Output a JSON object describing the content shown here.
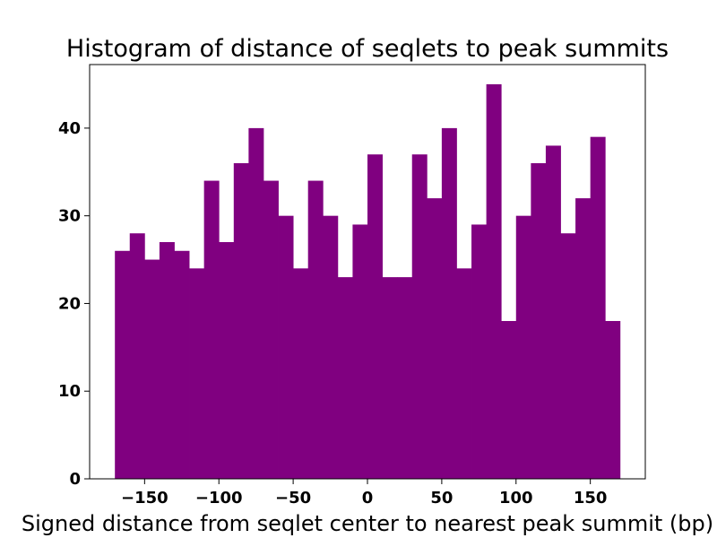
{
  "chart_data": {
    "type": "bar",
    "title": "Histogram of distance of seqlets to peak summits",
    "xlabel": "Signed distance from seqlet center to nearest peak summit (bp)",
    "ylabel": "",
    "bin_edges": [
      -170,
      -160,
      -150,
      -140,
      -130,
      -120,
      -110,
      -100,
      -90,
      -80,
      -70,
      -60,
      -50,
      -40,
      -30,
      -20,
      -10,
      0,
      10,
      20,
      30,
      40,
      50,
      60,
      70,
      80,
      90,
      100,
      110,
      120,
      130,
      140,
      150,
      160,
      170
    ],
    "values": [
      26,
      28,
      25,
      27,
      26,
      24,
      34,
      27,
      36,
      40,
      34,
      30,
      24,
      34,
      30,
      23,
      29,
      37,
      23,
      23,
      37,
      32,
      40,
      24,
      29,
      45,
      18,
      30,
      36,
      38,
      28,
      32,
      39,
      18
    ],
    "xlim": [
      -187,
      187
    ],
    "ylim": [
      0,
      47.25
    ],
    "xticks": [
      -150,
      -100,
      -50,
      0,
      50,
      100,
      150
    ],
    "xtick_labels": [
      "−150",
      "−100",
      "−50",
      "0",
      "50",
      "100",
      "150"
    ],
    "yticks": [
      0,
      10,
      20,
      30,
      40
    ],
    "ytick_labels": [
      "0",
      "10",
      "20",
      "30",
      "40"
    ],
    "bar_color": "#800080",
    "grid": false,
    "legend": "none"
  }
}
